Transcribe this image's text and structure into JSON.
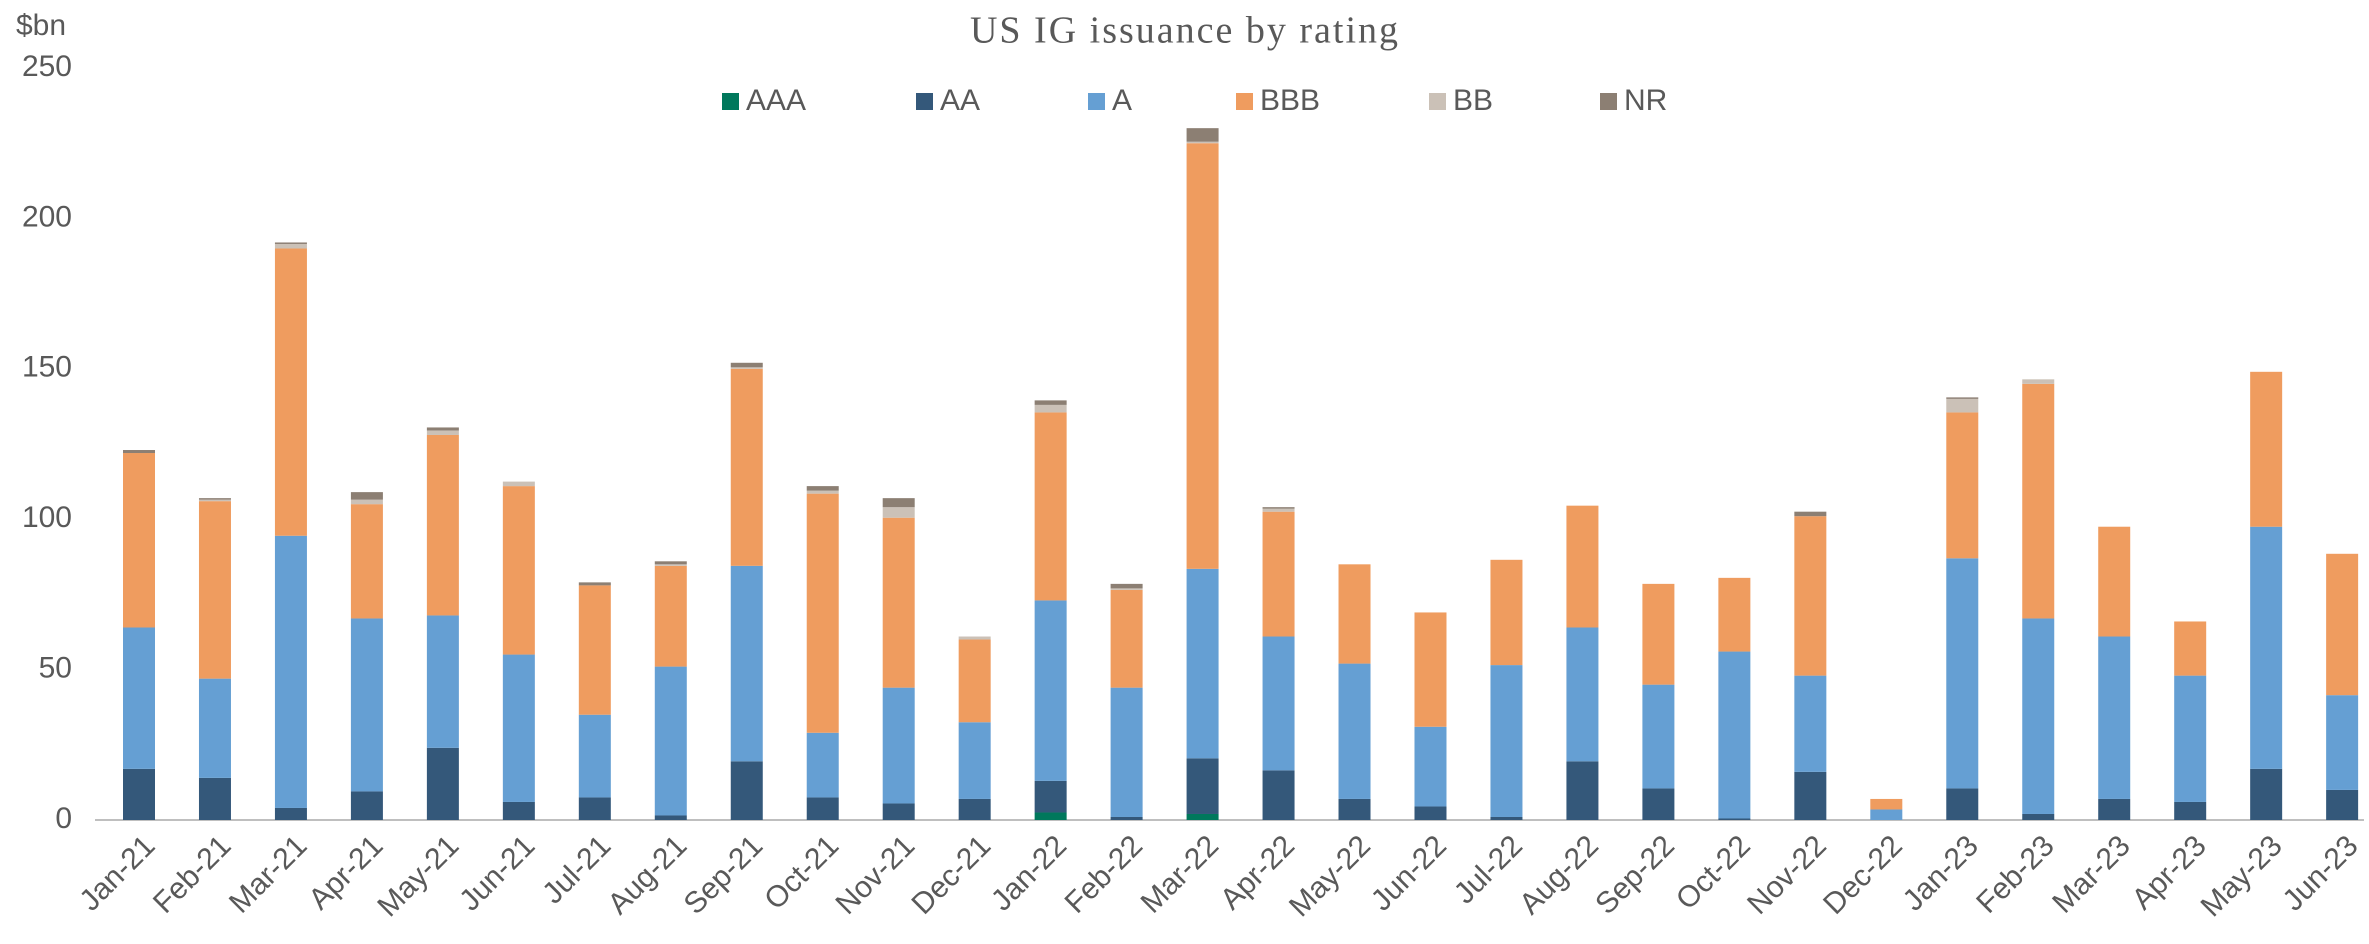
{
  "chart_data": {
    "type": "stacked_bar",
    "title": "US IG issuance by rating",
    "y_label": "$bn",
    "categories": [
      "Jan-21",
      "Feb-21",
      "Mar-21",
      "Apr-21",
      "May-21",
      "Jun-21",
      "Jul-21",
      "Aug-21",
      "Sep-21",
      "Oct-21",
      "Nov-21",
      "Dec-21",
      "Jan-22",
      "Feb-22",
      "Mar-22",
      "Apr-22",
      "May-22",
      "Jun-22",
      "Jul-22",
      "Aug-22",
      "Sep-22",
      "Oct-22",
      "Nov-22",
      "Dec-22",
      "Jan-23",
      "Feb-23",
      "Mar-23",
      "Apr-23",
      "May-23",
      "Jun-23"
    ],
    "series": [
      {
        "name": "AAA",
        "color": "#00785c",
        "values": [
          0,
          0,
          0,
          0,
          0,
          0,
          0,
          0,
          0,
          0,
          0,
          0,
          2.5,
          0,
          2,
          0,
          0,
          0,
          0,
          0,
          0,
          0,
          0,
          0,
          0,
          0,
          0,
          0,
          0,
          0
        ]
      },
      {
        "name": "AA",
        "color": "#34587a",
        "values": [
          17,
          14,
          4,
          9.5,
          24,
          6,
          7.5,
          1.5,
          19.5,
          7.5,
          5.5,
          7,
          10.5,
          1,
          18.5,
          16.5,
          7,
          4.5,
          1,
          19.5,
          10.5,
          0.5,
          16,
          0,
          10.5,
          2,
          7,
          6,
          17,
          10
        ]
      },
      {
        "name": "A",
        "color": "#659fd3",
        "values": [
          47,
          33,
          90.5,
          57.5,
          44,
          49,
          27.5,
          49.5,
          65,
          21.5,
          38.5,
          25.5,
          60,
          43,
          63,
          44.5,
          45,
          26.5,
          50.5,
          44.5,
          34.5,
          55.5,
          32,
          3.5,
          76.5,
          65,
          54,
          42,
          80.5,
          31.5
        ]
      },
      {
        "name": "BBB",
        "color": "#ef9c5f",
        "values": [
          58,
          59,
          95.5,
          38,
          60,
          56,
          43,
          33.5,
          65.5,
          79.5,
          56.5,
          27.5,
          62.5,
          32.5,
          141.5,
          41.5,
          33,
          38,
          35,
          40.5,
          33.5,
          24.5,
          53,
          3.5,
          48.5,
          78,
          36.5,
          18,
          51.5,
          47
        ]
      },
      {
        "name": "BB",
        "color": "#cbc1b7",
        "values": [
          0,
          0.5,
          1.5,
          1.5,
          1.5,
          1.5,
          0,
          0.5,
          0.5,
          1,
          3.5,
          1,
          2.5,
          0.5,
          0.5,
          1,
          0,
          0,
          0,
          0,
          0,
          0,
          0,
          0,
          4.5,
          1.5,
          0,
          0,
          0,
          0
        ]
      },
      {
        "name": "NR",
        "color": "#8c7f73",
        "values": [
          1,
          0.5,
          0.5,
          2.5,
          1,
          0,
          1,
          1,
          1.5,
          1.5,
          3,
          0,
          1.5,
          1.5,
          4.5,
          0.5,
          0,
          0,
          0,
          0,
          0,
          0,
          1.5,
          0,
          0.5,
          0,
          0,
          0,
          0,
          0
        ]
      }
    ],
    "ylim": [
      0,
      250
    ],
    "yticks": [
      0,
      50,
      100,
      150,
      200,
      250
    ],
    "grid": false,
    "legend": "top"
  }
}
